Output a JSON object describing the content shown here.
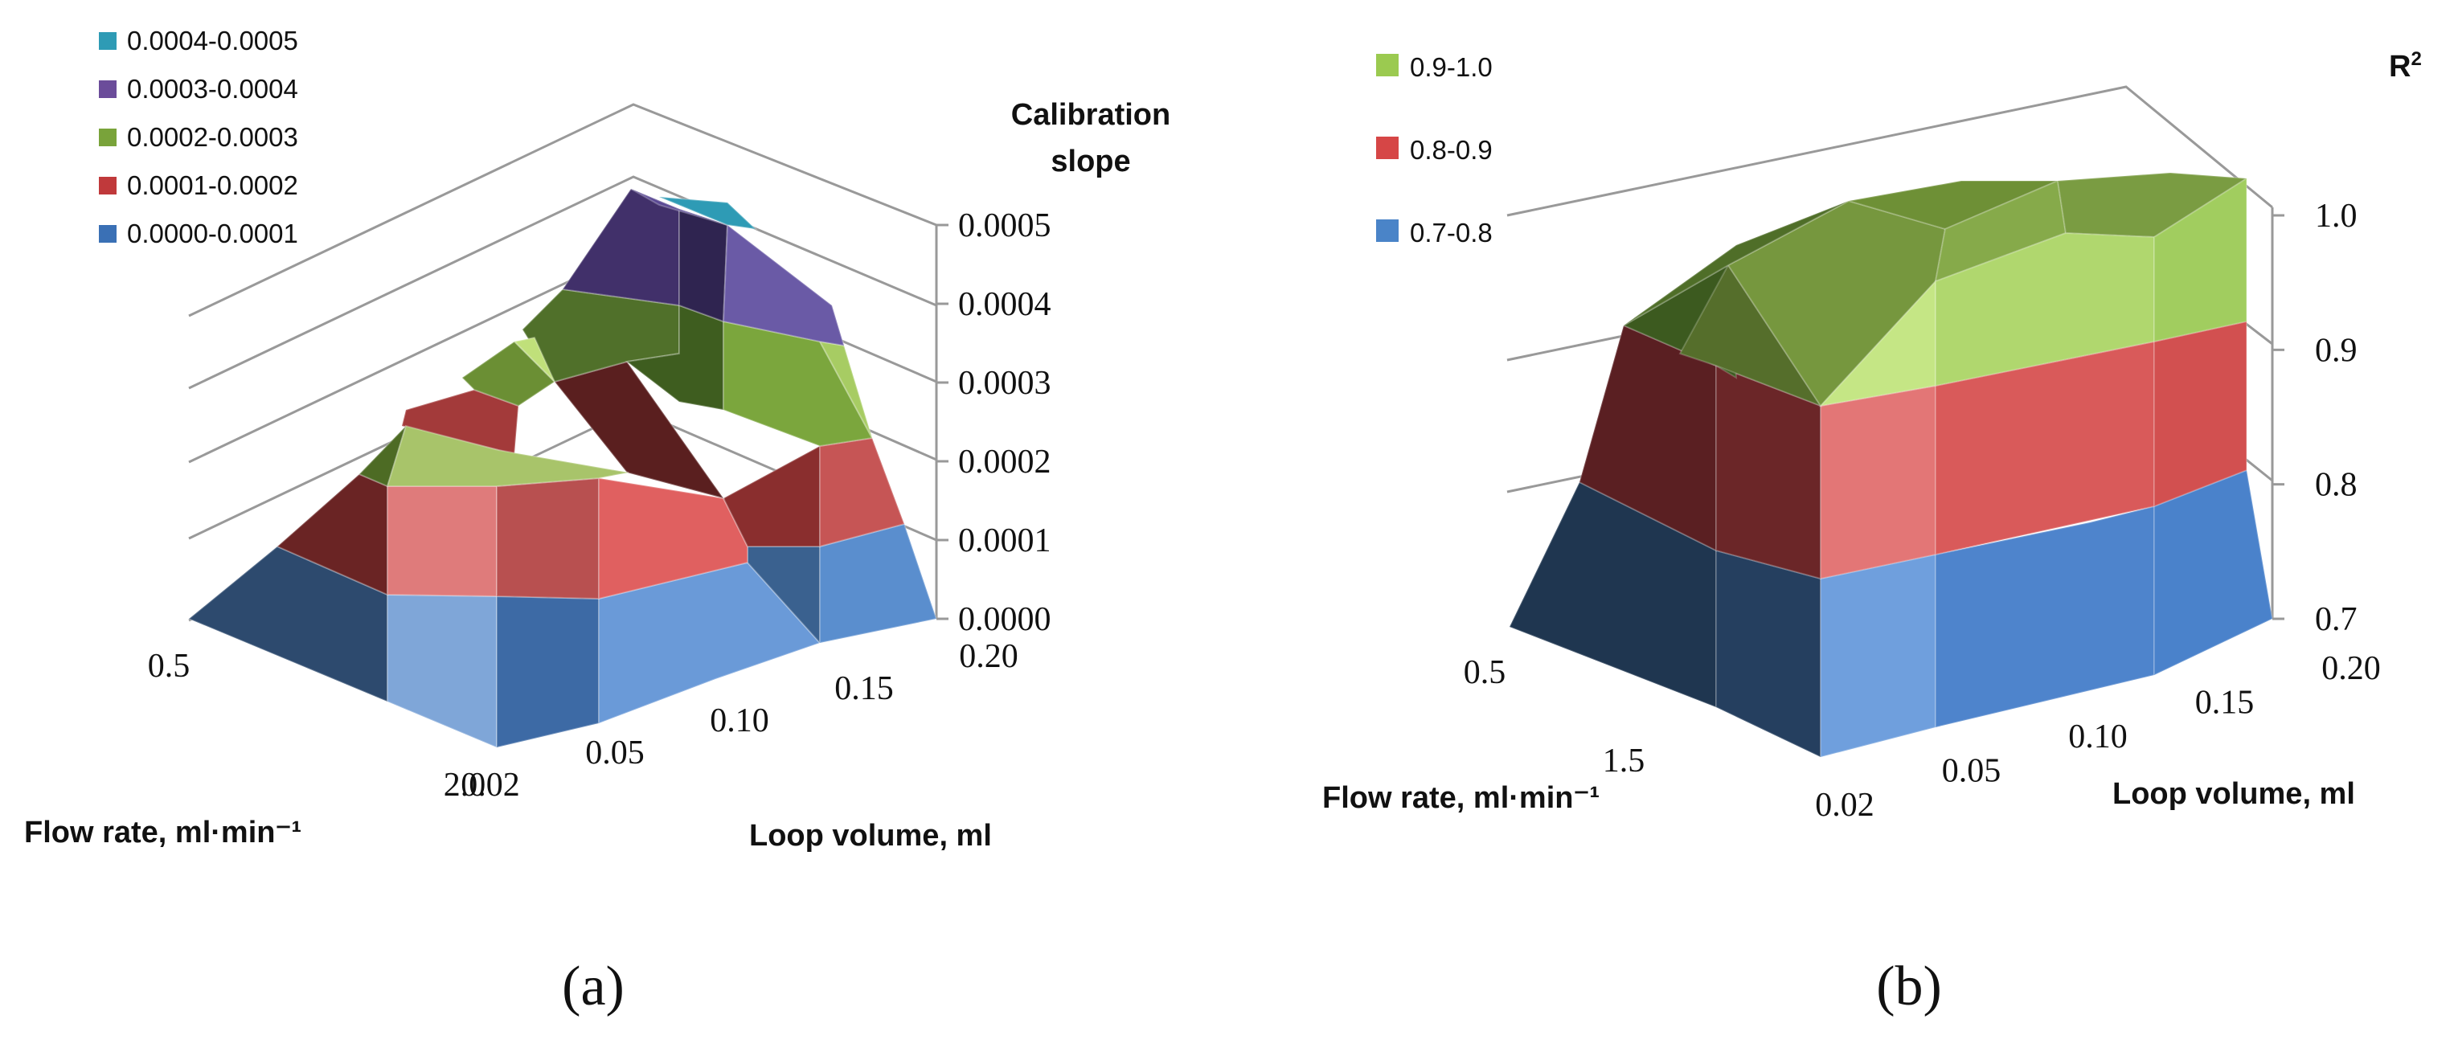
{
  "chart_data": [
    {
      "type": "surface",
      "panel_label": "(a)",
      "title": "Calibration slope",
      "title_lines": [
        "Calibration",
        "slope"
      ],
      "xlabel": "Loop volume, ml",
      "ylabel": "Flow rate, ml·min⁻¹",
      "zlabel": "Calibration slope",
      "x_ticks": [
        "0.02",
        "0.05",
        "0.10",
        "0.15",
        "0.20"
      ],
      "y_ticks": [
        "0.5",
        "2.0"
      ],
      "z_ticks": [
        "0.0000",
        "0.0001",
        "0.0002",
        "0.0003",
        "0.0004",
        "0.0005"
      ],
      "zlim": [
        0,
        0.0005
      ],
      "legend": [
        {
          "label": "0.0004-0.0005",
          "color": "#2e9bb5"
        },
        {
          "label": "0.0003-0.0004",
          "color": "#6b4c9a"
        },
        {
          "label": "0.0002-0.0003",
          "color": "#79a33a"
        },
        {
          "label": "0.0001-0.0002",
          "color": "#c0393b"
        },
        {
          "label": "0.0000-0.0001",
          "color": "#3a70b5"
        }
      ],
      "bands": [
        {
          "range": "0.0000-0.0001",
          "color": "#4a84c8"
        },
        {
          "range": "0.0001-0.0002",
          "color": "#b53a3a"
        },
        {
          "range": "0.0002-0.0003",
          "color": "#7ea33c"
        },
        {
          "range": "0.0003-0.0004",
          "color": "#5e4a8e"
        },
        {
          "range": "0.0004-0.0005",
          "color": "#2e9bb5"
        }
      ]
    },
    {
      "type": "surface",
      "panel_label": "(b)",
      "title": "R2",
      "title_main": "R",
      "title_sup": "2",
      "xlabel": "Loop volume, ml",
      "ylabel": "Flow rate, ml·min⁻¹",
      "zlabel": "R2",
      "x_ticks": [
        "0.02",
        "0.05",
        "0.10",
        "0.15",
        "0.20"
      ],
      "y_ticks": [
        "0.5",
        "1.5"
      ],
      "z_ticks": [
        "0.7",
        "0.8",
        "0.9",
        "1.0"
      ],
      "zlim": [
        0.7,
        1.0
      ],
      "legend": [
        {
          "label": "0.9-1.0",
          "color": "#9bca50"
        },
        {
          "label": "0.8-0.9",
          "color": "#d64646"
        },
        {
          "label": "0.7-0.8",
          "color": "#4a84c8"
        }
      ],
      "bands": [
        {
          "range": "0.7-0.8",
          "color": "#4a84c8"
        },
        {
          "range": "0.8-0.9",
          "color": "#d05050"
        },
        {
          "range": "0.9-1.0",
          "color": "#98c85a"
        }
      ]
    }
  ]
}
